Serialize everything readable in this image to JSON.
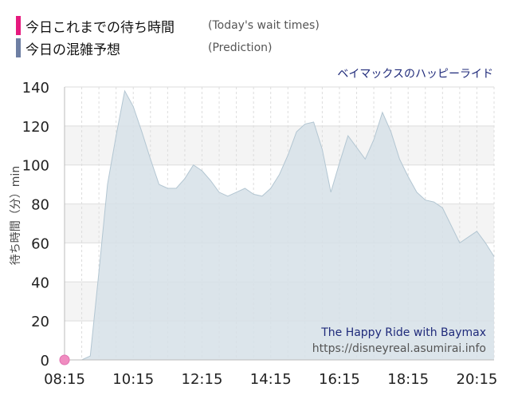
{
  "legend": [
    {
      "ja": "今日これまでの待ち時間",
      "en": "(Today's wait times)",
      "color": "#e6197e"
    },
    {
      "ja": "今日の混雑予想",
      "en": "(Prediction)",
      "color": "#6e7fa3"
    }
  ],
  "ride_name": "ベイマックスのハッピーライド",
  "watermark": {
    "line1": "The Happy Ride with Baymax",
    "line2": "https://disneyreal.asumirai.info"
  },
  "colors": {
    "actual": "#f08cc0",
    "prediction_fill": "#d6e0e8",
    "prediction_line": "#b3c6d2",
    "band": "#f4f4f4",
    "ride_name": "#1f2a7a"
  },
  "chart_data": {
    "type": "area",
    "title": "",
    "xlabel": "",
    "ylabel": "待ち時間（分）min",
    "ylim": [
      0,
      140
    ],
    "xlim": [
      "08:15",
      "20:45"
    ],
    "x_ticks": [
      "08:15",
      "10:15",
      "12:15",
      "14:15",
      "16:15",
      "18:15",
      "20:15"
    ],
    "y_ticks": [
      0,
      20,
      40,
      60,
      80,
      100,
      120,
      140
    ],
    "grid": true,
    "legend_position": "top-left",
    "series": [
      {
        "name": "今日の混雑予想",
        "x": [
          "08:15",
          "08:30",
          "08:45",
          "09:00",
          "09:15",
          "09:30",
          "09:45",
          "10:00",
          "10:15",
          "10:30",
          "10:45",
          "11:00",
          "11:15",
          "11:30",
          "11:45",
          "12:00",
          "12:15",
          "12:30",
          "12:45",
          "13:00",
          "13:15",
          "13:30",
          "13:45",
          "14:00",
          "14:15",
          "14:30",
          "14:45",
          "15:00",
          "15:15",
          "15:30",
          "15:45",
          "16:00",
          "16:15",
          "16:30",
          "16:45",
          "17:00",
          "17:15",
          "17:30",
          "17:45",
          "18:00",
          "18:15",
          "18:30",
          "18:45",
          "19:00",
          "19:15",
          "19:30",
          "19:45",
          "20:00",
          "20:15",
          "20:30",
          "20:45"
        ],
        "values": [
          0,
          0,
          0,
          2,
          45,
          90,
          115,
          138,
          130,
          117,
          103,
          90,
          88,
          88,
          93,
          100,
          97,
          92,
          86,
          84,
          86,
          88,
          85,
          84,
          88,
          95,
          105,
          117,
          121,
          122,
          108,
          86,
          101,
          115,
          109,
          103,
          113,
          127,
          117,
          103,
          94,
          86,
          82,
          81,
          78,
          69,
          60,
          63,
          66,
          60,
          53
        ]
      },
      {
        "name": "今日これまでの待ち時間",
        "x": [
          "08:15"
        ],
        "values": [
          0
        ]
      }
    ]
  }
}
